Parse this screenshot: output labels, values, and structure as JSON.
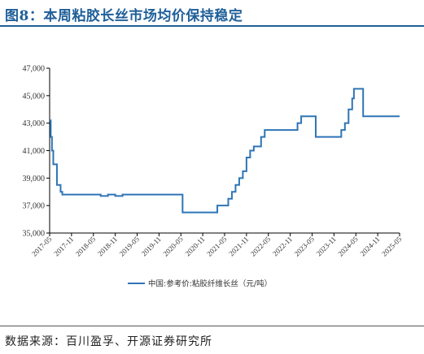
{
  "figure": {
    "title": "图8：本周粘胶长丝市场均价保持稳定",
    "source": "数据来源：百川盈孚、开源证券研究所"
  },
  "colors": {
    "title": "#1f5f99",
    "series": "#2e75b6",
    "axis": "#000000"
  },
  "chart_data": {
    "type": "line",
    "title": "",
    "xlabel": "",
    "ylabel": "",
    "ylim": [
      35000,
      47000
    ],
    "xlim": [
      "2017-05",
      "2025-05"
    ],
    "y_ticks": [
      35000,
      37000,
      39000,
      41000,
      43000,
      45000,
      47000
    ],
    "y_tick_labels": [
      "35,000",
      "37,000",
      "39,000",
      "41,000",
      "43,000",
      "45,000",
      "47,000"
    ],
    "x_tick_labels": [
      "2017-05",
      "2017-11",
      "2018-05",
      "2018-11",
      "2019-05",
      "2019-11",
      "2020-05",
      "2020-11",
      "2021-05",
      "2021-11",
      "2022-05",
      "2022-11",
      "2023-05",
      "2023-11",
      "2024-05",
      "2024-11",
      "2025-05"
    ],
    "grid": false,
    "legend_position": "bottom",
    "series": [
      {
        "name": "中国:参考价:粘胶纤维长丝（元/吨）",
        "step": true,
        "points": [
          [
            "2017-05",
            43200
          ],
          [
            "2017-05-10",
            42000
          ],
          [
            "2017-05-20",
            41000
          ],
          [
            "2017-06",
            40000
          ],
          [
            "2017-07",
            38500
          ],
          [
            "2017-08",
            38000
          ],
          [
            "2017-08-15",
            37800
          ],
          [
            "2018-01",
            37800
          ],
          [
            "2018-06",
            37800
          ],
          [
            "2018-07",
            37700
          ],
          [
            "2018-09",
            37800
          ],
          [
            "2018-11",
            37700
          ],
          [
            "2019-01",
            37800
          ],
          [
            "2019-08",
            37800
          ],
          [
            "2020-05",
            37800
          ],
          [
            "2020-05-15",
            36500
          ],
          [
            "2020-08",
            36500
          ],
          [
            "2021-02",
            36500
          ],
          [
            "2021-03",
            37000
          ],
          [
            "2021-05",
            37000
          ],
          [
            "2021-06",
            37500
          ],
          [
            "2021-07",
            38000
          ],
          [
            "2021-08",
            38500
          ],
          [
            "2021-09",
            39000
          ],
          [
            "2021-10",
            39500
          ],
          [
            "2021-11",
            40500
          ],
          [
            "2021-12",
            41000
          ],
          [
            "2022-01",
            41300
          ],
          [
            "2022-03",
            42000
          ],
          [
            "2022-04",
            42500
          ],
          [
            "2022-07",
            42500
          ],
          [
            "2022-12",
            42500
          ],
          [
            "2023-01",
            43000
          ],
          [
            "2023-02",
            43500
          ],
          [
            "2023-05",
            43500
          ],
          [
            "2023-06",
            42000
          ],
          [
            "2023-09",
            42000
          ],
          [
            "2023-12",
            42000
          ],
          [
            "2024-01",
            42500
          ],
          [
            "2024-02",
            43000
          ],
          [
            "2024-03",
            44000
          ],
          [
            "2024-04",
            44800
          ],
          [
            "2024-04-15",
            45500
          ],
          [
            "2024-06",
            45500
          ],
          [
            "2024-07",
            43500
          ],
          [
            "2024-10",
            43500
          ],
          [
            "2025-01",
            43500
          ],
          [
            "2025-05",
            43500
          ]
        ]
      }
    ]
  }
}
